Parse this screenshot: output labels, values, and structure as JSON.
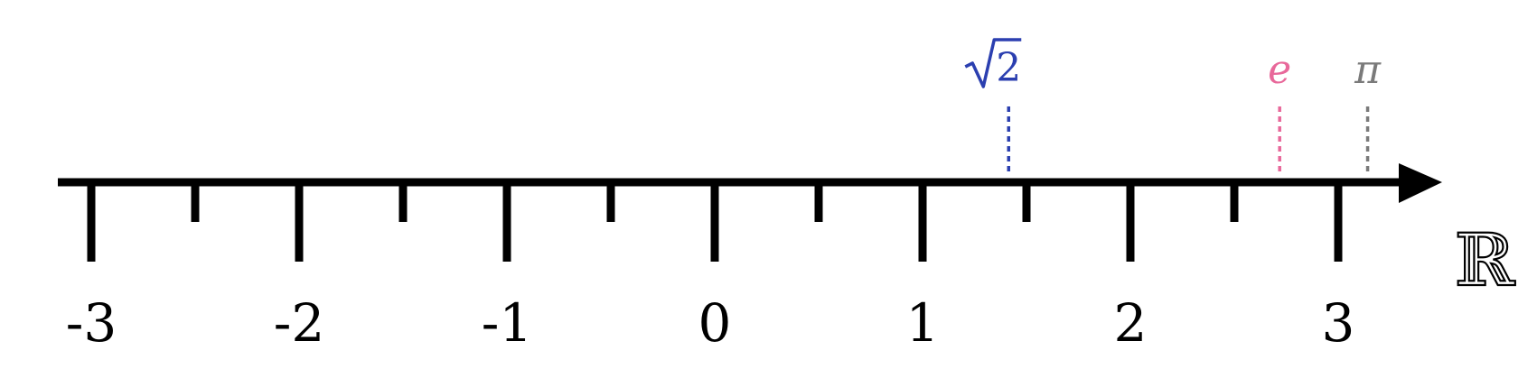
{
  "number_line": {
    "min": -3,
    "max": 3,
    "major_ticks": [
      -3,
      -2,
      -1,
      0,
      1,
      2,
      3
    ],
    "major_tick_labels": [
      "-3",
      "-2",
      "-1",
      "0",
      "1",
      "2",
      "3"
    ],
    "minor_ticks": [
      -2.5,
      -1.5,
      -0.5,
      0.5,
      1.5,
      2.5
    ],
    "set_label": "ℝ",
    "line_color": "#000000"
  },
  "marked_points": [
    {
      "name": "sqrt-2",
      "label": "2",
      "radical": "√",
      "value": 1.41421356,
      "color": "#2b3fb0"
    },
    {
      "name": "e",
      "label": "e",
      "value": 2.71828183,
      "color": "#e8689a"
    },
    {
      "name": "pi",
      "label": "π",
      "value": 3.14159265,
      "color": "#7a7a7a"
    }
  ]
}
